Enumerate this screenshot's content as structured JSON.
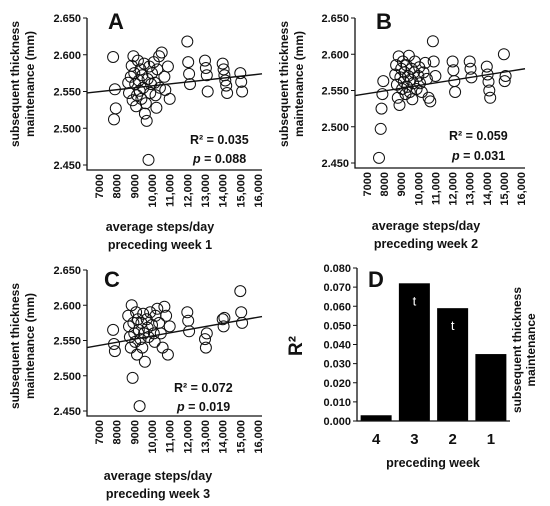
{
  "chart_data": [
    {
      "id": "A",
      "type": "scatter",
      "panel_label": "A",
      "ylabel_lines": [
        "subsequent thickness",
        "maintenance (mm)"
      ],
      "xlabel_lines": [
        "average steps/day",
        "preceding week 1"
      ],
      "ylim": [
        2.45,
        2.65
      ],
      "yticks": [
        "2.450",
        "2.500",
        "2.550",
        "2.600",
        "2.650"
      ],
      "xlim": [
        7000,
        16000
      ],
      "xticks": [
        "7000",
        "8000",
        "9000",
        "10,000",
        "11,000",
        "12,000",
        "13,000",
        "14,000",
        "15,000",
        "16,000"
      ],
      "stat_r2": "R² = 0.035",
      "stat_p_label": "p",
      "stat_p_value": " = 0.088",
      "trend": [
        [
          7000,
          2.548
        ],
        [
          16000,
          2.574
        ]
      ],
      "points": [
        [
          7800,
          2.597
        ],
        [
          7900,
          2.553
        ],
        [
          7950,
          2.527
        ],
        [
          7850,
          2.512
        ],
        [
          8650,
          2.562
        ],
        [
          8700,
          2.548
        ],
        [
          8800,
          2.57
        ],
        [
          8850,
          2.585
        ],
        [
          8900,
          2.538
        ],
        [
          8950,
          2.598
        ],
        [
          9000,
          2.575
        ],
        [
          9050,
          2.56
        ],
        [
          9100,
          2.53
        ],
        [
          9150,
          2.545
        ],
        [
          9200,
          2.592
        ],
        [
          9250,
          2.565
        ],
        [
          9300,
          2.551
        ],
        [
          9350,
          2.58
        ],
        [
          9400,
          2.54
        ],
        [
          9450,
          2.572
        ],
        [
          9500,
          2.555
        ],
        [
          9550,
          2.588
        ],
        [
          9600,
          2.52
        ],
        [
          9650,
          2.534
        ],
        [
          9700,
          2.51
        ],
        [
          9750,
          2.567
        ],
        [
          9800,
          2.457
        ],
        [
          9850,
          2.584
        ],
        [
          9900,
          2.548
        ],
        [
          9950,
          2.56
        ],
        [
          10000,
          2.575
        ],
        [
          10100,
          2.59
        ],
        [
          10150,
          2.562
        ],
        [
          10200,
          2.545
        ],
        [
          10250,
          2.528
        ],
        [
          10300,
          2.58
        ],
        [
          10400,
          2.598
        ],
        [
          10450,
          2.555
        ],
        [
          10550,
          2.603
        ],
        [
          10700,
          2.57
        ],
        [
          10750,
          2.552
        ],
        [
          10900,
          2.584
        ],
        [
          11000,
          2.54
        ],
        [
          12000,
          2.618
        ],
        [
          12050,
          2.59
        ],
        [
          12100,
          2.574
        ],
        [
          12150,
          2.56
        ],
        [
          13000,
          2.592
        ],
        [
          13050,
          2.582
        ],
        [
          13100,
          2.572
        ],
        [
          13150,
          2.55
        ],
        [
          14000,
          2.588
        ],
        [
          14050,
          2.58
        ],
        [
          14100,
          2.572
        ],
        [
          14150,
          2.565
        ],
        [
          14200,
          2.558
        ],
        [
          14250,
          2.548
        ],
        [
          15000,
          2.575
        ],
        [
          15050,
          2.563
        ],
        [
          15100,
          2.55
        ]
      ]
    },
    {
      "id": "B",
      "type": "scatter",
      "panel_label": "B",
      "ylabel_lines": [
        "subsequent thickness",
        "maintenance (mm)"
      ],
      "xlabel_lines": [
        "average steps/day",
        "preceding week 2"
      ],
      "ylim": [
        2.45,
        2.65
      ],
      "yticks": [
        "2.450",
        "2.500",
        "2.550",
        "2.600",
        "2.650"
      ],
      "xlim": [
        7000,
        16000
      ],
      "xticks": [
        "7000",
        "8000",
        "9000",
        "10,000",
        "11,000",
        "12,000",
        "13,000",
        "14,000",
        "15,000",
        "16,000"
      ],
      "stat_r2": "R² = 0.059",
      "stat_p_label": "p",
      "stat_p_value": " = 0.031",
      "trend": [
        [
          7000,
          2.543
        ],
        [
          16000,
          2.58
        ]
      ],
      "points": [
        [
          7700,
          2.457
        ],
        [
          7800,
          2.497
        ],
        [
          7850,
          2.525
        ],
        [
          7900,
          2.545
        ],
        [
          7950,
          2.563
        ],
        [
          8650,
          2.572
        ],
        [
          8700,
          2.585
        ],
        [
          8750,
          2.558
        ],
        [
          8800,
          2.54
        ],
        [
          8850,
          2.597
        ],
        [
          8900,
          2.53
        ],
        [
          8950,
          2.568
        ],
        [
          9000,
          2.58
        ],
        [
          9050,
          2.552
        ],
        [
          9100,
          2.59
        ],
        [
          9150,
          2.562
        ],
        [
          9200,
          2.575
        ],
        [
          9250,
          2.545
        ],
        [
          9300,
          2.585
        ],
        [
          9350,
          2.555
        ],
        [
          9400,
          2.57
        ],
        [
          9450,
          2.598
        ],
        [
          9500,
          2.548
        ],
        [
          9550,
          2.565
        ],
        [
          9600,
          2.58
        ],
        [
          9650,
          2.538
        ],
        [
          9700,
          2.56
        ],
        [
          9750,
          2.575
        ],
        [
          9800,
          2.59
        ],
        [
          9900,
          2.552
        ],
        [
          10000,
          2.57
        ],
        [
          10050,
          2.582
        ],
        [
          10100,
          2.56
        ],
        [
          10200,
          2.548
        ],
        [
          10300,
          2.575
        ],
        [
          10400,
          2.588
        ],
        [
          10500,
          2.566
        ],
        [
          10600,
          2.54
        ],
        [
          10700,
          2.535
        ],
        [
          10850,
          2.618
        ],
        [
          10900,
          2.59
        ],
        [
          11000,
          2.57
        ],
        [
          12000,
          2.59
        ],
        [
          12050,
          2.578
        ],
        [
          12100,
          2.563
        ],
        [
          12150,
          2.548
        ],
        [
          13000,
          2.59
        ],
        [
          13050,
          2.58
        ],
        [
          13100,
          2.568
        ],
        [
          14000,
          2.583
        ],
        [
          14050,
          2.572
        ],
        [
          14100,
          2.562
        ],
        [
          14150,
          2.55
        ],
        [
          14200,
          2.54
        ],
        [
          15000,
          2.6
        ],
        [
          15050,
          2.563
        ],
        [
          15100,
          2.57
        ]
      ]
    },
    {
      "id": "C",
      "type": "scatter",
      "panel_label": "C",
      "ylabel_lines": [
        "subsequent thickness",
        "maintenance (mm)"
      ],
      "xlabel_lines": [
        "average steps/day",
        "preceding week 3"
      ],
      "ylim": [
        2.45,
        2.65
      ],
      "yticks": [
        "2.450",
        "2.500",
        "2.550",
        "2.600",
        "2.650"
      ],
      "xlim": [
        7000,
        16000
      ],
      "xticks": [
        "7000",
        "8000",
        "9000",
        "10,000",
        "11,000",
        "12,000",
        "13,000",
        "14,000",
        "15,000",
        "16,000"
      ],
      "stat_r2": "R² = 0.072",
      "stat_p_label": "p",
      "stat_p_value": " = 0.019",
      "trend": [
        [
          7000,
          2.54
        ],
        [
          16000,
          2.584
        ]
      ],
      "points": [
        [
          7800,
          2.565
        ],
        [
          7850,
          2.545
        ],
        [
          7900,
          2.535
        ],
        [
          8650,
          2.585
        ],
        [
          8700,
          2.57
        ],
        [
          8750,
          2.555
        ],
        [
          8800,
          2.54
        ],
        [
          8850,
          2.6
        ],
        [
          8900,
          2.497
        ],
        [
          8950,
          2.575
        ],
        [
          9000,
          2.56
        ],
        [
          9050,
          2.548
        ],
        [
          9100,
          2.59
        ],
        [
          9150,
          2.53
        ],
        [
          9200,
          2.58
        ],
        [
          9250,
          2.565
        ],
        [
          9300,
          2.457
        ],
        [
          9350,
          2.552
        ],
        [
          9400,
          2.575
        ],
        [
          9450,
          2.54
        ],
        [
          9500,
          2.588
        ],
        [
          9550,
          2.56
        ],
        [
          9600,
          2.52
        ],
        [
          9700,
          2.58
        ],
        [
          9750,
          2.568
        ],
        [
          9800,
          2.555
        ],
        [
          9900,
          2.59
        ],
        [
          10000,
          2.572
        ],
        [
          10100,
          2.56
        ],
        [
          10150,
          2.548
        ],
        [
          10200,
          2.585
        ],
        [
          10300,
          2.595
        ],
        [
          10400,
          2.575
        ],
        [
          10500,
          2.56
        ],
        [
          10600,
          2.54
        ],
        [
          10700,
          2.598
        ],
        [
          10800,
          2.585
        ],
        [
          10900,
          2.53
        ],
        [
          11000,
          2.57
        ],
        [
          12000,
          2.59
        ],
        [
          12050,
          2.578
        ],
        [
          12100,
          2.563
        ],
        [
          13000,
          2.552
        ],
        [
          13050,
          2.54
        ],
        [
          13100,
          2.56
        ],
        [
          14000,
          2.58
        ],
        [
          14050,
          2.57
        ],
        [
          14100,
          2.582
        ],
        [
          15000,
          2.62
        ],
        [
          15050,
          2.59
        ],
        [
          15100,
          2.575
        ]
      ]
    },
    {
      "id": "D",
      "type": "bar",
      "panel_label": "D",
      "ylabel": "R²",
      "right_label_lines": [
        "subsequent thickness",
        "maintenance"
      ],
      "xlabel": "preceding week",
      "categories": [
        "4",
        "3",
        "2",
        "1"
      ],
      "values": [
        0.003,
        0.072,
        0.059,
        0.035
      ],
      "bar_marks": [
        "",
        "t",
        "t",
        ""
      ],
      "ylim": [
        0,
        0.08
      ],
      "yticks": [
        "0.000",
        "0.010",
        "0.020",
        "0.030",
        "0.040",
        "0.050",
        "0.060",
        "0.070",
        "0.080"
      ]
    }
  ]
}
